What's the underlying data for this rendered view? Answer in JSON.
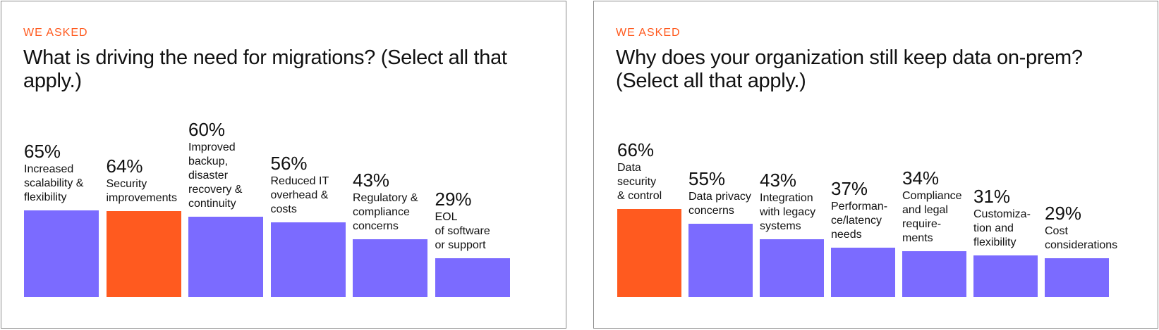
{
  "colors": {
    "default_bar": "#7b6bff",
    "highlight_bar": "#ff5a1f",
    "eyebrow": "#ff5a1f"
  },
  "chart_data": [
    {
      "type": "bar",
      "eyebrow": "WE ASKED",
      "title": "What is driving the need for migrations? (Select all that apply.)",
      "categories": [
        "Increased\nscalability &\nflexibility",
        "Security\nimprovements",
        "Improved\nbackup,\ndisaster\nrecovery &\ncontinuity",
        "Reduced IT\noverhead &\ncosts",
        "Regulatory &\ncompliance\nconcerns",
        "EOL\nof software\nor support"
      ],
      "values": [
        65,
        64,
        60,
        56,
        43,
        29
      ],
      "value_labels": [
        "65%",
        "64%",
        "60%",
        "56%",
        "43%",
        "29%"
      ],
      "unit": "%",
      "highlight_index": 1,
      "grid": false,
      "legend": "none"
    },
    {
      "type": "bar",
      "eyebrow": "WE ASKED",
      "title": "Why does your organization still keep data on-prem? (Select all that apply.)",
      "categories": [
        "Data\nsecurity\n& control",
        "Data privacy\nconcerns",
        "Integration\nwith legacy\nsystems",
        "Performan-\nce/latency\nneeds",
        "Compliance\nand legal\nrequire-\nments",
        "Customiza-\ntion and\nflexibility",
        "Cost\nconsiderations"
      ],
      "values": [
        66,
        55,
        43,
        37,
        34,
        31,
        29
      ],
      "value_labels": [
        "66%",
        "55%",
        "43%",
        "37%",
        "34%",
        "31%",
        "29%"
      ],
      "unit": "%",
      "highlight_index": 0,
      "grid": false,
      "legend": "none"
    }
  ]
}
